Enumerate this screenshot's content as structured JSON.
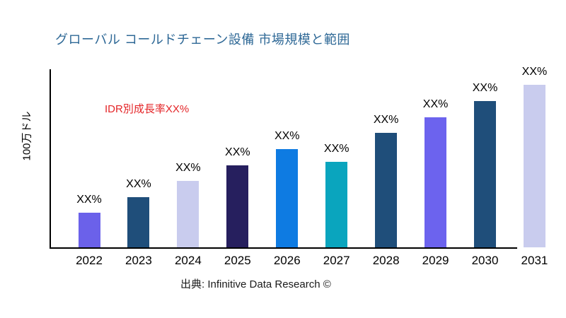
{
  "chart_data": {
    "type": "bar",
    "title": "グローバル コールドチェーン設備 市場規模と範囲",
    "ylabel": "100万ドル",
    "annotation": "IDR別成長率XX%",
    "annotation_color": "#E42528",
    "title_color": "#2E6896",
    "source": "出典: Infinitive Data Research ©",
    "grid": false,
    "legend": "none",
    "axis_color": "#000000",
    "categories": [
      "2022",
      "2023",
      "2024",
      "2025",
      "2026",
      "2027",
      "2028",
      "2029",
      "2030",
      "2031"
    ],
    "values_relative": [
      49,
      71,
      94,
      116,
      139,
      121,
      162,
      184,
      207,
      230
    ],
    "bar_labels": [
      "XX%",
      "XX%",
      "XX%",
      "XX%",
      "XX%",
      "XX%",
      "XX%",
      "XX%",
      "XX%",
      "XX%"
    ],
    "bar_colors": [
      "#6B61EA",
      "#1F4E7A",
      "#C9CCEE",
      "#261F5E",
      "#0E7BE2",
      "#0AA5BE",
      "#1F4E7A",
      "#6C63EE",
      "#1F4E7A",
      "#C9CCEE"
    ]
  }
}
